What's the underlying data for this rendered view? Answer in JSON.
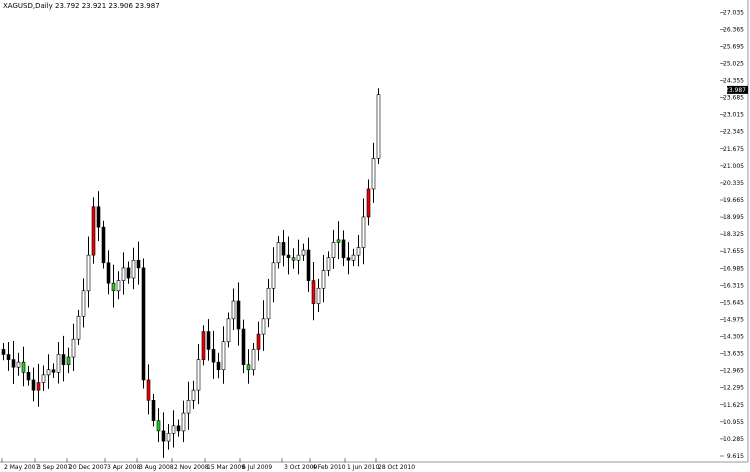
{
  "title": "XAGUSD,Daily  23.792 23.921 23.906 23.987",
  "colors": {
    "bull_body": "#ffffff",
    "bear_body": "#000000",
    "up_accent": "#22cc22",
    "down_accent": "#ee0000",
    "price_label_bg": "#000000"
  },
  "chart_data": {
    "type": "candlestick",
    "title": "",
    "ylim": [
      9.615,
      27.045
    ],
    "current_price": "23.987",
    "y_ticks": [
      "9.615",
      "10.285",
      "10.955",
      "11.625",
      "12.295",
      "12.965",
      "13.635",
      "14.305",
      "14.975",
      "15.645",
      "16.315",
      "16.985",
      "17.655",
      "18.325",
      "18.995",
      "19.665",
      "20.335",
      "21.005",
      "21.675",
      "22.345",
      "23.015",
      "23.685",
      "24.355",
      "25.025",
      "25.695",
      "26.365",
      "27.035"
    ],
    "x_labels": [
      "2 May 2007",
      "3 Sep 2007",
      "20 Dec 2007",
      "3 Apr 2008",
      "3 Aug 2008",
      "2 Nov 2008",
      "15 Mar 2009",
      "6 Jul 2009",
      "3 Oct 2009",
      "4 Feb 2010",
      "1 Jun 2010",
      "28 Oct 2010"
    ],
    "close": [
      13.6,
      13.4,
      13.1,
      13.3,
      12.9,
      12.6,
      12.2,
      12.5,
      12.8,
      13.0,
      12.9,
      13.6,
      13.2,
      13.5,
      14.2,
      15.1,
      16.1,
      17.5,
      19.4,
      18.6,
      17.2,
      16.4,
      16.1,
      16.5,
      17.0,
      16.6,
      17.3,
      17.0,
      12.6,
      11.8,
      11.0,
      10.6,
      10.2,
      10.5,
      10.8,
      10.6,
      11.3,
      11.8,
      12.2,
      13.4,
      14.5,
      13.8,
      13.3,
      13.0,
      14.1,
      15.0,
      15.7,
      14.6,
      13.2,
      13.0,
      13.8,
      14.4,
      15.0,
      16.2,
      17.2,
      18.0,
      17.5,
      17.4,
      17.3,
      17.5,
      17.7,
      16.5,
      15.6,
      16.2,
      16.9,
      17.4,
      18.0,
      18.1,
      17.4,
      17.3,
      17.5,
      17.8,
      19.0,
      20.1,
      21.3,
      23.8
    ]
  }
}
